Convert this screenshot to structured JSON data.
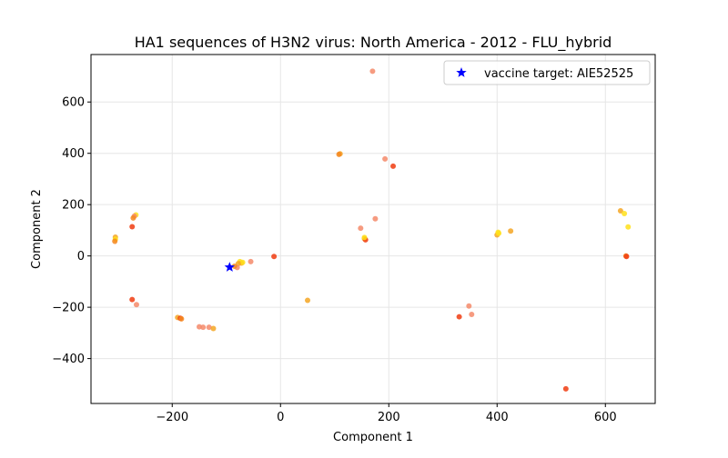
{
  "chart_data": {
    "type": "scatter",
    "title": "HA1 sequences of H3N2 virus: North America - 2012 - FLU_hybrid",
    "xlabel": "Component 1",
    "ylabel": "Component 2",
    "xlim": [
      -350,
      692
    ],
    "ylim": [
      -575,
      785
    ],
    "grid": true,
    "legend_placement": "top-right",
    "x_ticks": [
      -200,
      0,
      200,
      400,
      600
    ],
    "y_ticks": [
      -400,
      -200,
      0,
      200,
      400,
      600
    ],
    "x_tick_labels": [
      "−200",
      "0",
      "200",
      "400",
      "600"
    ],
    "y_tick_labels": [
      "−400",
      "−200",
      "0",
      "200",
      "400",
      "600"
    ],
    "colors": {
      "red": "#f03c10",
      "orange": "#f5871e",
      "salmon": "#f58a6a",
      "amber": "#f5a623",
      "yellow": "#ffe119",
      "vaccine": "#0000ff"
    },
    "series": [
      {
        "marker": "circle",
        "points": [
          {
            "x": 170,
            "y": 720,
            "c": "salmon"
          },
          {
            "x": 110,
            "y": 398,
            "c": "amber"
          },
          {
            "x": 108,
            "y": 396,
            "c": "orange"
          },
          {
            "x": 193,
            "y": 378,
            "c": "salmon"
          },
          {
            "x": 208,
            "y": 350,
            "c": "red"
          },
          {
            "x": 175,
            "y": 145,
            "c": "salmon"
          },
          {
            "x": 148,
            "y": 108,
            "c": "salmon"
          },
          {
            "x": 155,
            "y": 68,
            "c": "amber"
          },
          {
            "x": 157,
            "y": 63,
            "c": "red"
          },
          {
            "x": 155,
            "y": 72,
            "c": "yellow"
          },
          {
            "x": -305,
            "y": 73,
            "c": "amber"
          },
          {
            "x": -305,
            "y": 65,
            "c": "yellow"
          },
          {
            "x": -306,
            "y": 57,
            "c": "orange"
          },
          {
            "x": -267,
            "y": 160,
            "c": "yellow"
          },
          {
            "x": -270,
            "y": 155,
            "c": "salmon"
          },
          {
            "x": -272,
            "y": 148,
            "c": "orange"
          },
          {
            "x": -274,
            "y": 114,
            "c": "red"
          },
          {
            "x": -274,
            "y": -170,
            "c": "red"
          },
          {
            "x": -266,
            "y": -190,
            "c": "salmon"
          },
          {
            "x": -190,
            "y": -240,
            "c": "amber"
          },
          {
            "x": -185,
            "y": -243,
            "c": "red"
          },
          {
            "x": -183,
            "y": -245,
            "c": "orange"
          },
          {
            "x": -150,
            "y": -276,
            "c": "salmon"
          },
          {
            "x": -143,
            "y": -278,
            "c": "salmon"
          },
          {
            "x": -132,
            "y": -278,
            "c": "salmon"
          },
          {
            "x": -124,
            "y": -283,
            "c": "amber"
          },
          {
            "x": -12,
            "y": -2,
            "c": "red"
          },
          {
            "x": -55,
            "y": -22,
            "c": "salmon"
          },
          {
            "x": -75,
            "y": -22,
            "c": "yellow"
          },
          {
            "x": -72,
            "y": -28,
            "c": "amber"
          },
          {
            "x": -70,
            "y": -25,
            "c": "yellow"
          },
          {
            "x": -78,
            "y": -30,
            "c": "amber"
          },
          {
            "x": -80,
            "y": -45,
            "c": "salmon"
          },
          {
            "x": -85,
            "y": -40,
            "c": "orange"
          },
          {
            "x": 50,
            "y": -173,
            "c": "amber"
          },
          {
            "x": 330,
            "y": -237,
            "c": "red"
          },
          {
            "x": 348,
            "y": -195,
            "c": "salmon"
          },
          {
            "x": 353,
            "y": -228,
            "c": "salmon"
          },
          {
            "x": 400,
            "y": 82,
            "c": "amber"
          },
          {
            "x": 402,
            "y": 92,
            "c": "yellow"
          },
          {
            "x": 403,
            "y": 88,
            "c": "yellow"
          },
          {
            "x": 425,
            "y": 97,
            "c": "amber"
          },
          {
            "x": 628,
            "y": 176,
            "c": "amber"
          },
          {
            "x": 635,
            "y": 165,
            "c": "yellow"
          },
          {
            "x": 642,
            "y": 113,
            "c": "yellow"
          },
          {
            "x": 638,
            "y": 0,
            "c": "orange"
          },
          {
            "x": 639,
            "y": -2,
            "c": "red"
          },
          {
            "x": 527,
            "y": -518,
            "c": "red"
          }
        ]
      },
      {
        "name": "vaccine target: AIE52525",
        "marker": "star",
        "points": [
          {
            "x": -94,
            "y": -44,
            "c": "vaccine"
          }
        ]
      }
    ]
  }
}
